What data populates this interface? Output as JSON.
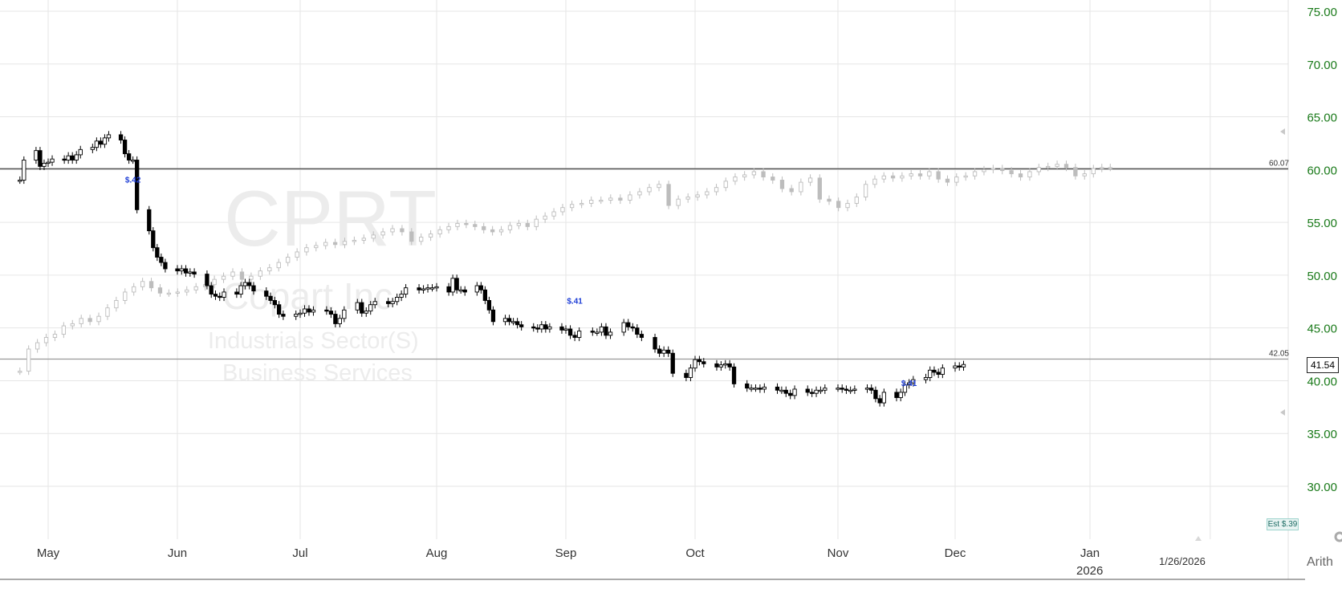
{
  "watermark": {
    "symbol": "CPRT",
    "company": "Copart Inc",
    "sector": "Industrials Sector(S)",
    "industry": "Business Services"
  },
  "price_box": "41.54",
  "scale_mode": "Arith",
  "est_badge": "Est $.39",
  "date_label": "1/26/2026",
  "chart_data": {
    "type": "candlestick",
    "y_axis": {
      "range": [
        25.5,
        76
      ],
      "ticks": [
        "75.00",
        "70.00",
        "65.00",
        "60.00",
        "55.00",
        "50.00",
        "45.00",
        "40.00",
        "35.00",
        "30.00"
      ],
      "tick_color": "#1a7a1a",
      "position": "right"
    },
    "x_axis": {
      "months": [
        "May",
        "Jun",
        "Jul",
        "Aug",
        "Sep",
        "Oct",
        "Nov",
        "Dec",
        "Jan"
      ],
      "year_label": "2026"
    },
    "horizontal_lines": [
      {
        "label": "60.07",
        "value": 60.07
      },
      {
        "label": "42.05",
        "value": 42.05
      }
    ],
    "dividend_markers": [
      {
        "label": "$.42",
        "date": "2025-05-22"
      },
      {
        "label": "$.41",
        "date": "2025-09-04"
      },
      {
        "label": "$.41",
        "date": "2025-11-20"
      }
    ],
    "series": [
      {
        "role": "price",
        "color": "#000000",
        "closes": [
          59.0,
          60.9,
          61.8,
          60.3,
          60.6,
          60.7,
          61.0,
          60.9,
          61.3,
          60.9,
          61.4,
          61.9,
          62.1,
          62.7,
          62.4,
          63.0,
          63.3,
          62.8,
          61.5,
          60.9,
          60.9,
          56.2,
          54.2,
          52.6,
          51.7,
          51.2,
          50.6,
          50.4,
          50.6,
          50.2,
          50.3,
          50.1,
          49.0,
          48.2,
          48.0,
          47.9,
          48.4,
          48.2,
          49.0,
          49.3,
          49.0,
          48.5,
          48.0,
          47.6,
          47.2,
          46.3,
          46.1,
          46.3,
          46.4,
          46.8,
          46.5,
          46.7,
          46.6,
          46.3,
          45.4,
          45.9,
          46.7,
          47.4,
          46.4,
          46.6,
          47.2,
          47.5,
          47.3,
          47.5,
          47.9,
          48.2,
          48.8,
          48.6,
          48.7,
          48.8,
          48.8,
          48.9,
          48.4,
          49.7,
          48.6,
          48.6,
          48.4,
          49.0,
          48.6,
          47.6,
          46.7,
          45.6,
          45.9,
          45.6,
          45.6,
          45.3,
          45.1,
          45.0,
          44.9,
          45.3,
          44.9,
          45.1,
          44.8,
          44.9,
          44.3,
          44.1,
          44.7,
          44.6,
          44.6,
          45.1,
          44.3,
          44.6,
          45.5,
          45.1,
          45.0,
          44.4,
          44.1,
          43.0,
          42.6,
          42.9,
          42.6,
          40.7,
          40.3,
          41.2,
          42.0,
          41.8,
          41.6,
          41.3,
          41.5,
          41.6,
          41.3,
          39.7,
          39.3,
          39.3,
          39.3,
          39.2,
          39.4,
          39.1,
          39.1,
          38.8,
          38.6,
          39.2,
          38.9,
          38.8,
          39.1,
          39.1,
          39.3,
          39.3,
          39.2,
          39.1,
          39.1,
          39.2,
          39.3,
          39.1,
          38.3,
          37.9,
          38.9,
          38.4,
          38.9,
          39.6,
          39.8,
          40.1,
          40.3,
          41.0,
          40.8,
          40.6,
          41.2,
          41.4,
          41.3,
          41.54
        ],
        "style": "black"
      },
      {
        "role": "relative_strength",
        "color": "#bdbdbd",
        "closes": [
          40.9,
          43.0,
          43.6,
          44.1,
          44.4,
          45.2,
          45.4,
          45.9,
          45.6,
          46.1,
          46.9,
          47.6,
          48.4,
          48.9,
          49.4,
          48.8,
          48.3,
          48.3,
          48.4,
          48.6,
          48.9,
          49.1,
          49.6,
          49.9,
          50.3,
          49.6,
          49.9,
          50.4,
          50.7,
          51.2,
          51.7,
          52.2,
          52.6,
          52.8,
          53.1,
          52.9,
          53.2,
          53.3,
          53.5,
          53.8,
          54.1,
          54.4,
          54.1,
          53.2,
          53.6,
          53.9,
          54.3,
          54.6,
          54.9,
          54.8,
          54.6,
          54.3,
          54.1,
          54.3,
          54.7,
          54.9,
          54.6,
          55.3,
          55.6,
          56.0,
          56.4,
          56.7,
          56.8,
          57.1,
          57.1,
          57.3,
          57.1,
          57.6,
          57.9,
          58.3,
          58.6,
          56.6,
          57.2,
          57.4,
          57.6,
          57.9,
          58.3,
          58.9,
          59.3,
          59.5,
          59.8,
          59.3,
          59.0,
          58.2,
          57.9,
          58.8,
          59.2,
          57.2,
          57.0,
          56.4,
          56.8,
          57.4,
          58.6,
          59.1,
          59.4,
          59.2,
          59.4,
          59.6,
          59.4,
          59.8,
          59.1,
          58.8,
          59.3,
          59.4,
          59.8,
          60.0,
          60.1,
          59.9,
          59.6,
          59.3,
          59.8,
          60.2,
          60.3,
          60.5,
          60.2,
          59.4,
          59.6,
          60.1,
          60.2,
          60.2
        ]
      }
    ]
  }
}
